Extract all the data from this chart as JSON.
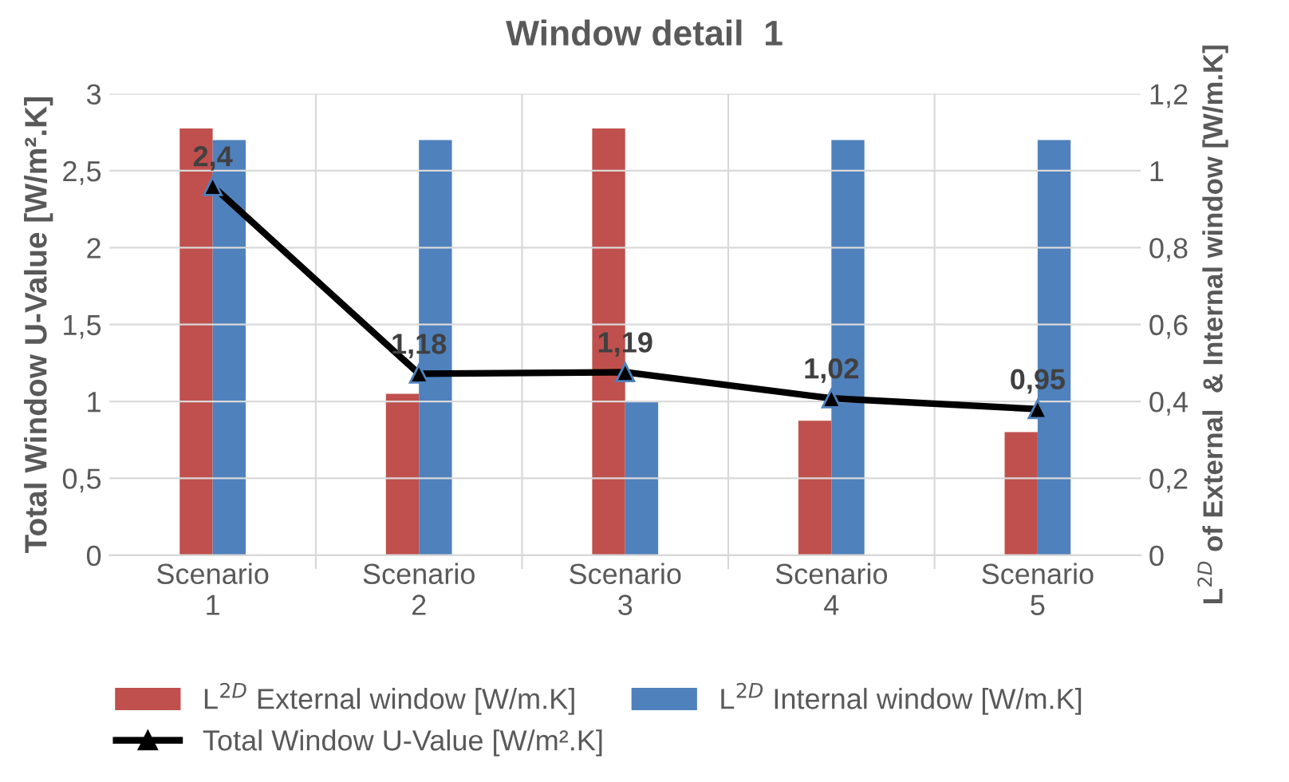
{
  "chart_data": {
    "type": "bar",
    "title": "Window detail  1",
    "categories": [
      "Scenario\n1",
      "Scenario\n2",
      "Scenario\n3",
      "Scenario\n4",
      "Scenario\n5"
    ],
    "ylabel": "Total Window U-Value [W/m².K]",
    "y2label": "L$^{2D}$ of External  & Internal window [W/m.K]",
    "series": [
      {
        "name": "L$^{2D}$ External window [W/m.K]",
        "color": "#c0504d",
        "axis": "y2",
        "values": [
          1.11,
          0.42,
          1.11,
          0.35,
          0.32
        ]
      },
      {
        "name": "L$^{2D}$ Internal window [W/m.K]",
        "color": "#4f81bd",
        "axis": "y2",
        "values": [
          1.08,
          1.08,
          0.4,
          1.08,
          1.08
        ]
      },
      {
        "name": "Total Window U-Value [W/m².K]",
        "type": "line",
        "color": "#000000",
        "marker": "triangle",
        "line_style": "solid",
        "values": [
          2.4,
          1.18,
          1.19,
          1.02,
          0.95
        ],
        "value_labels": [
          "2,4",
          "1,18",
          "1,19",
          "1,02",
          "0,95"
        ]
      }
    ],
    "ylim": [
      0,
      3
    ],
    "yticks": [
      0,
      {
        "value": 0.5,
        "label": "0,5"
      },
      1,
      {
        "value": 1.5,
        "label": "1,5"
      },
      2,
      {
        "value": 2.5,
        "label": "2,5"
      },
      3
    ],
    "y2lim": [
      0,
      1.2
    ],
    "y2ticks": [
      0,
      {
        "value": 0.2,
        "label": "0,2"
      },
      {
        "value": 0.4,
        "label": "0,4"
      },
      {
        "value": 0.6,
        "label": "0,6"
      },
      {
        "value": 0.8,
        "label": "0,8"
      },
      1,
      {
        "value": 1.2,
        "label": "1,2"
      }
    ],
    "grid": true,
    "legend": "bottom"
  }
}
